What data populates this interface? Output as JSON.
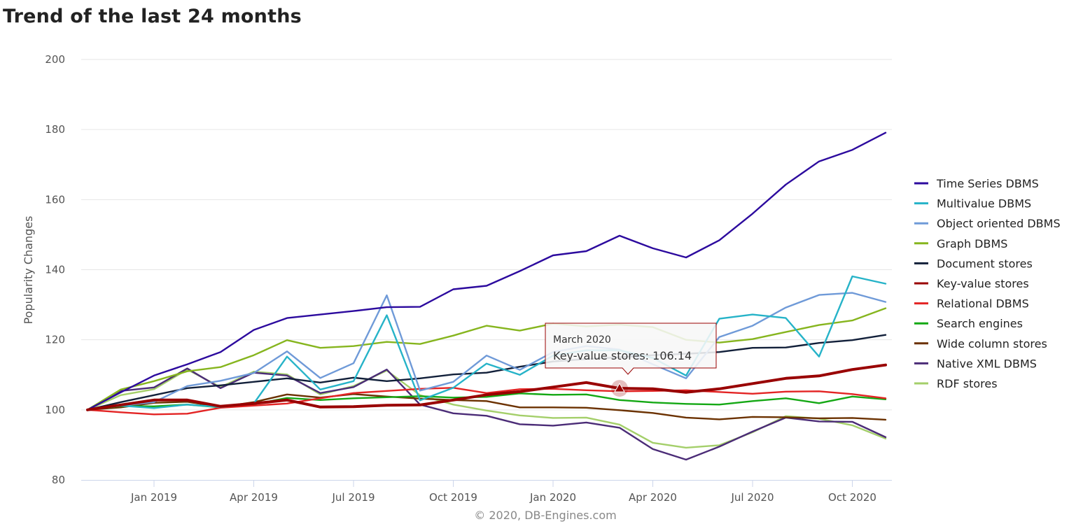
{
  "page": {
    "title": "Trend of the last 24 months"
  },
  "chart_data": {
    "type": "line",
    "title": "Trend of the last 24 months",
    "xlabel": "",
    "ylabel": "Popularity Changes",
    "ylim": [
      80,
      200
    ],
    "yticks": [
      80,
      100,
      120,
      140,
      160,
      180,
      200
    ],
    "xtick_labels": [
      "Jan 2019",
      "Apr 2019",
      "Jul 2019",
      "Oct 2019",
      "Jan 2020",
      "Apr 2020",
      "Jul 2020",
      "Oct 2020"
    ],
    "xtick_indices": [
      2,
      5,
      8,
      11,
      14,
      17,
      20,
      23
    ],
    "x": [
      "Nov 2018",
      "Dec 2018",
      "Jan 2019",
      "Feb 2019",
      "Mar 2019",
      "Apr 2019",
      "May 2019",
      "Jun 2019",
      "Jul 2019",
      "Aug 2019",
      "Sep 2019",
      "Oct 2019",
      "Nov 2019",
      "Dec 2019",
      "Jan 2020",
      "Feb 2020",
      "Mar 2020",
      "Apr 2020",
      "May 2020",
      "Jun 2020",
      "Jul 2020",
      "Aug 2020",
      "Sep 2020",
      "Oct 2020",
      "Nov 2020"
    ],
    "grid": true,
    "legend_position": "right",
    "credit": "© 2020, DB-Engines.com",
    "tooltip": {
      "title": "March 2020",
      "text": "Key-value stores: 106.14",
      "series_index": 5,
      "x_index": 16
    },
    "series": [
      {
        "name": "Time Series DBMS",
        "color": "#2c0a9e",
        "values": [
          100,
          105,
          109.8,
          113,
          116.5,
          122.8,
          126.2,
          127.2,
          128.2,
          129.3,
          129.4,
          134.4,
          135.4,
          139.6,
          144.1,
          145.3,
          149.7,
          146.1,
          143.5,
          148.4,
          156,
          164.3,
          170.9,
          174.2,
          179.1
        ]
      },
      {
        "name": "Multivalue DBMS",
        "color": "#26b3c8",
        "values": [
          100,
          101.2,
          100.5,
          101.5,
          100.8,
          101.8,
          115.2,
          105.8,
          108.2,
          127,
          102.7,
          106.3,
          113.2,
          110,
          115.5,
          117,
          117,
          114.8,
          109.8,
          126,
          127.2,
          126.2,
          115.2,
          138.1,
          136
        ]
      },
      {
        "name": "Object oriented DBMS",
        "color": "#6f9ad8",
        "values": [
          100,
          101.2,
          102.2,
          106.8,
          108.3,
          110.5,
          116.7,
          109.1,
          113.3,
          132.7,
          105.5,
          108,
          115.5,
          111.4,
          116.5,
          118.2,
          117.2,
          113,
          109,
          120.8,
          124,
          129.2,
          132.8,
          133.4,
          130.8
        ]
      },
      {
        "name": "Graph DBMS",
        "color": "#86b51e",
        "values": [
          100,
          105.8,
          108.2,
          111,
          112.2,
          115.6,
          119.9,
          117.7,
          118.2,
          119.4,
          118.8,
          121.2,
          124,
          122.6,
          124.6,
          123.8,
          124.3,
          123.6,
          120,
          119.2,
          120.2,
          122.2,
          124.2,
          125.5,
          129
        ]
      },
      {
        "name": "Document stores",
        "color": "#12203a",
        "values": [
          100,
          102.2,
          104.2,
          106.2,
          107,
          108,
          109,
          107.8,
          109.2,
          108.2,
          109,
          110.1,
          110.6,
          112.3,
          113.8,
          114.5,
          115,
          115.6,
          116,
          116.5,
          117.7,
          117.8,
          119.1,
          119.9,
          121.4
        ]
      },
      {
        "name": "Key-value stores",
        "color": "#990000",
        "values": [
          100,
          101.4,
          102.8,
          102.8,
          101,
          101.8,
          102.8,
          100.8,
          100.9,
          101.3,
          101.4,
          102.8,
          104.3,
          105.2,
          106.5,
          107.8,
          106.14,
          106,
          105,
          106,
          107.5,
          109,
          109.7,
          111.5,
          112.8
        ]
      },
      {
        "name": "Relational DBMS",
        "color": "#e32424",
        "values": [
          100,
          99.3,
          98.7,
          98.9,
          100.6,
          101.2,
          101.8,
          103.3,
          104.8,
          105.4,
          106,
          106.3,
          104.8,
          105.9,
          106,
          105.6,
          105.3,
          105.4,
          105.6,
          105.1,
          104.6,
          105.2,
          105.3,
          104.5,
          103.3
        ]
      },
      {
        "name": "Search engines",
        "color": "#14a814",
        "values": [
          100,
          101.1,
          101,
          101.5,
          100.7,
          101.6,
          103.4,
          102.8,
          103.3,
          103.6,
          103.9,
          103.5,
          103.7,
          104.7,
          104.3,
          104.4,
          102.8,
          102.1,
          101.7,
          101.5,
          102.5,
          103.3,
          101.9,
          103.8,
          103
        ]
      },
      {
        "name": "Wide column stores",
        "color": "#6b3100",
        "values": [
          100,
          100.7,
          102,
          102.3,
          100.8,
          102.2,
          104.4,
          103.5,
          104.5,
          103.8,
          103.2,
          102.8,
          102.5,
          100.7,
          100.7,
          100.6,
          99.9,
          99.1,
          97.8,
          97.3,
          98,
          97.9,
          97.6,
          97.7,
          97.2
        ]
      },
      {
        "name": "Native XML DBMS",
        "color": "#4b2c77",
        "values": [
          100,
          105.4,
          106.4,
          111.8,
          106.2,
          110.6,
          109.8,
          104.8,
          106.5,
          111.5,
          101.5,
          99,
          98.3,
          95.9,
          95.5,
          96.4,
          94.9,
          88.8,
          85.8,
          89.5,
          93.8,
          97.8,
          96.7,
          96.6,
          92.2
        ]
      },
      {
        "name": "RDF stores",
        "color": "#a4cf6a",
        "values": [
          100,
          104.2,
          105.9,
          111.5,
          106.5,
          110.9,
          110.1,
          104.4,
          106.8,
          111.2,
          104.2,
          101.5,
          99.8,
          98.4,
          97.7,
          97.8,
          95.8,
          90.6,
          89.2,
          89.9,
          93.6,
          98.2,
          97.5,
          95.6,
          91.8
        ]
      }
    ]
  }
}
